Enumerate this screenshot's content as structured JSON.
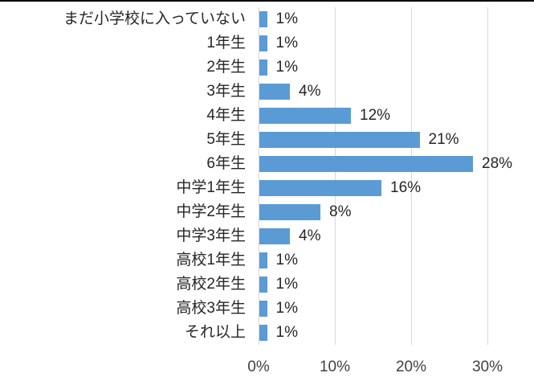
{
  "chart_data": {
    "type": "bar",
    "orientation": "horizontal",
    "title": "",
    "xlabel": "",
    "ylabel": "",
    "grid": true,
    "legend": false,
    "xlim": [
      0,
      30
    ],
    "categories": [
      "まだ小学校に入っていない",
      "1年生",
      "2年生",
      "3年生",
      "4年生",
      "5年生",
      "6年生",
      "中学1年生",
      "中学2年生",
      "中学3年生",
      "高校1年生",
      "高校2年生",
      "高校3年生",
      "それ以上"
    ],
    "values": [
      1,
      1,
      1,
      4,
      12,
      21,
      28,
      16,
      8,
      4,
      1,
      1,
      1,
      1
    ],
    "value_labels": [
      "1%",
      "1%",
      "1%",
      "4%",
      "12%",
      "21%",
      "28%",
      "16%",
      "8%",
      "4%",
      "1%",
      "1%",
      "1%",
      "1%"
    ],
    "x_ticks": [
      {
        "value": 0,
        "label": "0%"
      },
      {
        "value": 10,
        "label": "10%"
      },
      {
        "value": 20,
        "label": "20%"
      },
      {
        "value": 30,
        "label": "30%"
      }
    ],
    "colors": {
      "bar": "#5B9BD5",
      "gridline": "#D9D9D9",
      "category_text": "#262626",
      "value_text": "#262626",
      "tick_text": "#404040",
      "top_border": "#000000",
      "background": "#FFFFFF"
    }
  }
}
